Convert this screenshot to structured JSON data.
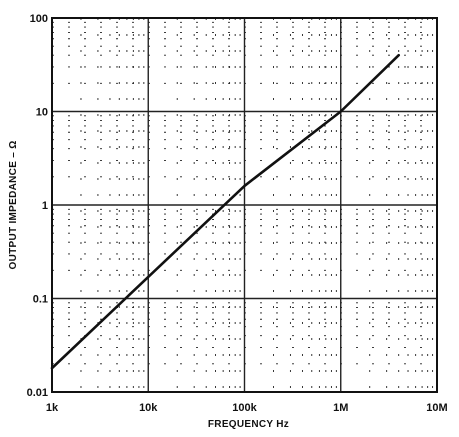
{
  "chart_data": {
    "type": "line",
    "title": "",
    "xlabel": "FREQUENCY    Hz",
    "ylabel": "OUTPUT IMPEDANCE – Ω",
    "x_scale": "log",
    "y_scale": "log",
    "xlim": [
      1000,
      10000000
    ],
    "ylim": [
      0.01,
      100
    ],
    "x_ticks": [
      {
        "value": 1000,
        "label": "1k"
      },
      {
        "value": 10000,
        "label": "10k"
      },
      {
        "value": 100000,
        "label": "100k"
      },
      {
        "value": 1000000,
        "label": "1M"
      },
      {
        "value": 10000000,
        "label": "10M"
      }
    ],
    "y_ticks": [
      {
        "value": 0.01,
        "label": "0.01"
      },
      {
        "value": 0.1,
        "label": "0.1"
      },
      {
        "value": 1,
        "label": "1"
      },
      {
        "value": 10,
        "label": "10"
      },
      {
        "value": 100,
        "label": "100"
      }
    ],
    "grid": true,
    "legend": "none",
    "series": [
      {
        "x": [
          1000,
          10000,
          100000,
          1000000,
          4000000
        ],
        "y": [
          0.018,
          0.17,
          1.6,
          10,
          40
        ]
      }
    ],
    "colors": {
      "line": "#111111",
      "grid": "#222222",
      "background": "#ffffff"
    }
  }
}
